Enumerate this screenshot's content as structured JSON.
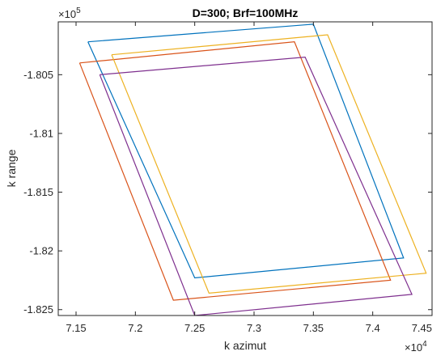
{
  "chart_data": {
    "type": "line",
    "title": "D=300; Brf=100MHz",
    "xlabel": "k azimut",
    "ylabel": "k range",
    "x_exponent_label": {
      "base": "×10",
      "power": "4"
    },
    "y_exponent_label": {
      "base": "×10",
      "power": "5"
    },
    "xlim": [
      71350,
      74500
    ],
    "ylim": [
      -182550,
      -180050
    ],
    "xticks": [
      71500,
      72000,
      72500,
      73000,
      73500,
      74000,
      74500
    ],
    "xtick_labels": [
      "7.15",
      "7.2",
      "7.25",
      "7.3",
      "7.35",
      "7.4",
      "7.45"
    ],
    "yticks": [
      -180500,
      -181000,
      -181500,
      -182000,
      -182500
    ],
    "ytick_labels": [
      "-1.805",
      "-1.81",
      "-1.815",
      "-1.82",
      "-1.825"
    ],
    "grid": false,
    "series": [
      {
        "color": "#0072BD",
        "x": [
          71600,
          73500,
          74260,
          72500,
          71600
        ],
        "y": [
          -180220,
          -180070,
          -182060,
          -182230,
          -180220
        ]
      },
      {
        "color": "#D95319",
        "x": [
          71530,
          73340,
          74150,
          72320,
          71530
        ],
        "y": [
          -180400,
          -180220,
          -182250,
          -182420,
          -180400
        ]
      },
      {
        "color": "#EDB120",
        "x": [
          71800,
          73620,
          74450,
          72620,
          71800
        ],
        "y": [
          -180330,
          -180160,
          -182190,
          -182360,
          -180330
        ]
      },
      {
        "color": "#7E2F8E",
        "x": [
          71700,
          73430,
          74330,
          72500,
          71700
        ],
        "y": [
          -180500,
          -180350,
          -182370,
          -182550,
          -180500
        ]
      }
    ]
  }
}
